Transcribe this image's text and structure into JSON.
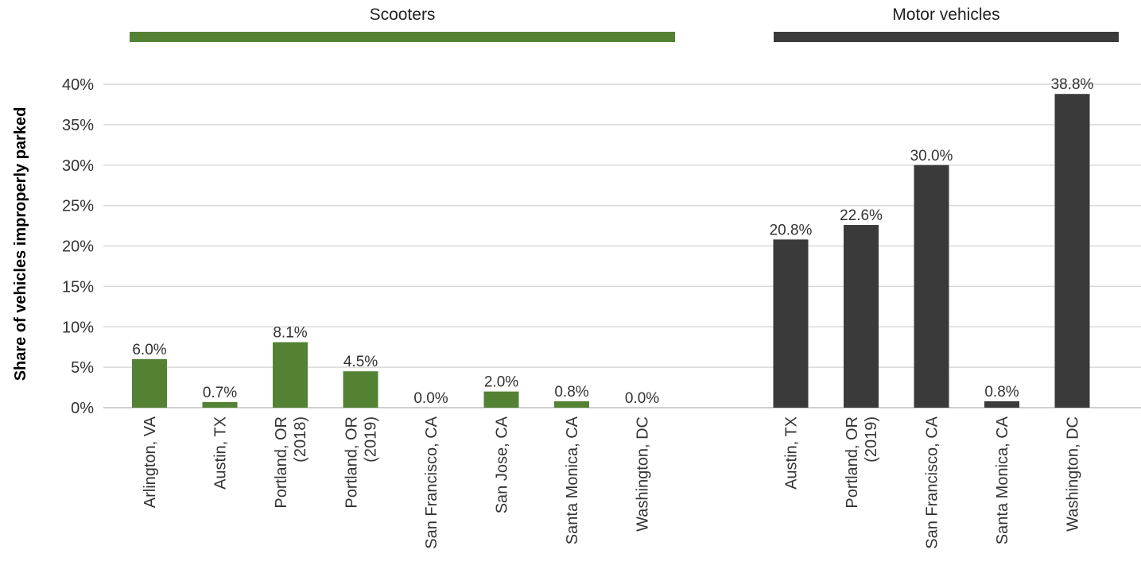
{
  "chart_data": {
    "type": "bar",
    "ylabel": "Share of vehicles improperly parked",
    "ylim": [
      0,
      40
    ],
    "yticks": [
      "0%",
      "5%",
      "10%",
      "15%",
      "20%",
      "25%",
      "30%",
      "35%",
      "40%"
    ],
    "grid": true,
    "groups": [
      {
        "name": "Scooters",
        "color": "#548235",
        "categories": [
          "Arlington, VA",
          "Austin, TX",
          "Portland, OR (2018)",
          "Portland, OR (2019)",
          "San Francisco, CA",
          "San Jose, CA",
          "Santa Monica, CA",
          "Washington, DC"
        ],
        "values": [
          6.0,
          0.7,
          8.1,
          4.5,
          0.0,
          2.0,
          0.8,
          0.0
        ],
        "labels": [
          "6.0%",
          "0.7%",
          "8.1%",
          "4.5%",
          "0.0%",
          "2.0%",
          "0.8%",
          "0.0%"
        ]
      },
      {
        "name": "Motor vehicles",
        "color": "#3a3a3a",
        "categories": [
          "Austin, TX",
          "Portland, OR (2019)",
          "San Francisco, CA",
          "Santa Monica, CA",
          "Washington, DC"
        ],
        "values": [
          20.8,
          22.6,
          30.0,
          0.8,
          38.8
        ],
        "labels": [
          "20.8%",
          "22.6%",
          "30.0%",
          "0.8%",
          "38.8%"
        ]
      }
    ]
  }
}
